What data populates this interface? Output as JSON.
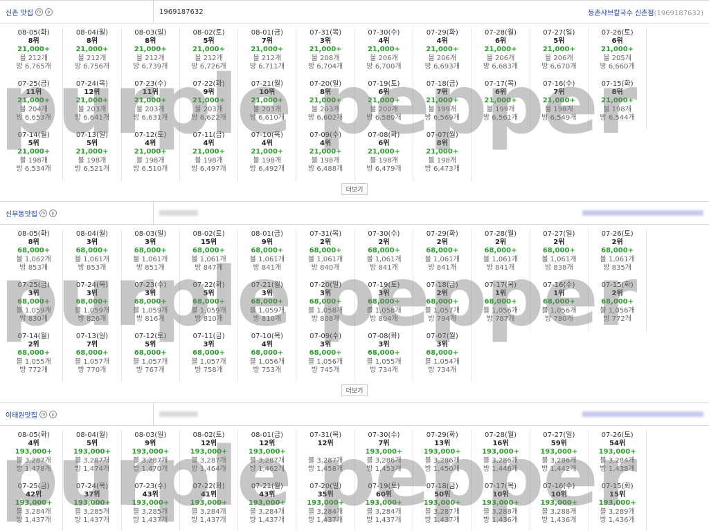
{
  "more_label": "더보기",
  "watermark_text": "purple pepper",
  "sections": [
    {
      "keyword": "신촌 맛집",
      "badge1": "m",
      "badge2": "p",
      "id": "1969187632",
      "store_name": "등촌샤브칼국수 신촌점",
      "store_id": "(1969187632)",
      "cells": [
        {
          "date": "08-05(화)",
          "rank": "8위",
          "price": "21,000+",
          "blog": "블 212개",
          "visit": "방 6,765개"
        },
        {
          "date": "08-04(월)",
          "rank": "8위",
          "price": "21,000+",
          "blog": "블 212개",
          "visit": "방 6,756개"
        },
        {
          "date": "08-03(일)",
          "rank": "8위",
          "price": "21,000+",
          "blog": "블 212개",
          "visit": "방 6,739개"
        },
        {
          "date": "08-02(토)",
          "rank": "5위",
          "price": "21,000+",
          "blog": "블 212개",
          "visit": "방 6,726개"
        },
        {
          "date": "08-01(금)",
          "rank": "7위",
          "price": "21,000+",
          "blog": "블 212개",
          "visit": "방 6,711개"
        },
        {
          "date": "07-31(목)",
          "rank": "3위",
          "price": "21,000+",
          "blog": "블 208개",
          "visit": "방 6,704개"
        },
        {
          "date": "07-30(수)",
          "rank": "4위",
          "price": "21,000+",
          "blog": "블 206개",
          "visit": "방 6,700개"
        },
        {
          "date": "07-29(화)",
          "rank": "4위",
          "price": "21,000+",
          "blog": "블 206개",
          "visit": "방 6,693개"
        },
        {
          "date": "07-28(월)",
          "rank": "6위",
          "price": "21,000+",
          "blog": "블 206개",
          "visit": "방 6,683개"
        },
        {
          "date": "07-27(일)",
          "rank": "5위",
          "price": "21,000+",
          "blog": "블 206개",
          "visit": "방 6,670개"
        },
        {
          "date": "07-26(토)",
          "rank": "6위",
          "price": "21,000+",
          "blog": "블 205개",
          "visit": "방 6,660개"
        },
        {
          "date": "07-25(금)",
          "rank": "11위",
          "price": "21,000+",
          "blog": "블 204개",
          "visit": "방 6,653개"
        },
        {
          "date": "07-24(목)",
          "rank": "12위",
          "price": "21,000+",
          "blog": "블 203개",
          "visit": "방 6,641개"
        },
        {
          "date": "07-23(수)",
          "rank": "11위",
          "price": "21,000+",
          "blog": "블 203개",
          "visit": "방 6,631개"
        },
        {
          "date": "07-22(화)",
          "rank": "9위",
          "price": "21,000+",
          "blog": "블 203개",
          "visit": "방 6,622개"
        },
        {
          "date": "07-21(월)",
          "rank": "10위",
          "price": "21,000+",
          "blog": "블 203개",
          "visit": "방 6,610개"
        },
        {
          "date": "07-20(일)",
          "rank": "8위",
          "price": "21,000+",
          "blog": "블 203개",
          "visit": "방 6,602개"
        },
        {
          "date": "07-19(토)",
          "rank": "6위",
          "price": "21,000+",
          "blog": "블 200개",
          "visit": "방 6,580개"
        },
        {
          "date": "07-18(금)",
          "rank": "7위",
          "price": "21,000+",
          "blog": "블 199개",
          "visit": "방 6,569개"
        },
        {
          "date": "07-17(목)",
          "rank": "6위",
          "price": "21,000+",
          "blog": "블 199개",
          "visit": "방 6,561개"
        },
        {
          "date": "07-16(수)",
          "rank": "7위",
          "price": "21,000+",
          "blog": "블 198개",
          "visit": "방 6,549개"
        },
        {
          "date": "07-15(화)",
          "rank": "8위",
          "price": "21,000+",
          "blog": "블 198개",
          "visit": "방 6,544개"
        },
        {
          "date": "07-14(월)",
          "rank": "5위",
          "price": "21,000+",
          "blog": "블 198개",
          "visit": "방 6,534개"
        },
        {
          "date": "07-13(일)",
          "rank": "5위",
          "price": "21,000+",
          "blog": "블 198개",
          "visit": "방 6,521개"
        },
        {
          "date": "07-12(토)",
          "rank": "4위",
          "price": "21,000+",
          "blog": "블 198개",
          "visit": "방 6,510개"
        },
        {
          "date": "07-11(금)",
          "rank": "4위",
          "price": "21,000+",
          "blog": "블 198개",
          "visit": "방 6,497개"
        },
        {
          "date": "07-10(목)",
          "rank": "4위",
          "price": "21,000+",
          "blog": "블 198개",
          "visit": "방 6,492개"
        },
        {
          "date": "07-09(수)",
          "rank": "4위",
          "price": "21,000+",
          "blog": "블 198개",
          "visit": "방 6,488개"
        },
        {
          "date": "07-08(화)",
          "rank": "6위",
          "price": "21,000+",
          "blog": "블 198개",
          "visit": "방 6,479개"
        },
        {
          "date": "07-07(월)",
          "rank": "8위",
          "price": "21,000+",
          "blog": "블 198개",
          "visit": "방 6,473개"
        }
      ]
    },
    {
      "keyword": "신부동맛집",
      "badge1": "m",
      "badge2": "p",
      "id": "",
      "store_name": "",
      "store_id": "",
      "cells": [
        {
          "date": "08-05(화)",
          "rank": "8위",
          "price": "68,000+",
          "blog": "블 1,062개",
          "visit": "방 853개"
        },
        {
          "date": "08-04(월)",
          "rank": "3위",
          "price": "68,000+",
          "blog": "블 1,061개",
          "visit": "방 853개"
        },
        {
          "date": "08-03(일)",
          "rank": "3위",
          "price": "68,000+",
          "blog": "블 1,061개",
          "visit": "방 851개"
        },
        {
          "date": "08-02(토)",
          "rank": "15위",
          "price": "68,000+",
          "blog": "블 1,061개",
          "visit": "방 847개"
        },
        {
          "date": "08-01(금)",
          "rank": "9위",
          "price": "68,000+",
          "blog": "블 1,061개",
          "visit": "방 841개"
        },
        {
          "date": "07-31(목)",
          "rank": "2위",
          "price": "68,000+",
          "blog": "블 1,061개",
          "visit": "방 840개"
        },
        {
          "date": "07-30(수)",
          "rank": "2위",
          "price": "68,000+",
          "blog": "블 1,061개",
          "visit": "방 841개"
        },
        {
          "date": "07-29(화)",
          "rank": "2위",
          "price": "68,000+",
          "blog": "블 1,061개",
          "visit": "방 841개"
        },
        {
          "date": "07-28(월)",
          "rank": "2위",
          "price": "68,000+",
          "blog": "블 1,061개",
          "visit": "방 841개"
        },
        {
          "date": "07-27(일)",
          "rank": "2위",
          "price": "68,000+",
          "blog": "블 1,061개",
          "visit": "방 838개"
        },
        {
          "date": "07-26(토)",
          "rank": "2위",
          "price": "68,000+",
          "blog": "블 1,061개",
          "visit": "방 835개"
        },
        {
          "date": "07-25(금)",
          "rank": "3위",
          "price": "68,000+",
          "blog": "블 1,059개",
          "visit": "방 830개"
        },
        {
          "date": "07-24(목)",
          "rank": "3위",
          "price": "68,000+",
          "blog": "블 1,059개",
          "visit": "방 826개"
        },
        {
          "date": "07-23(수)",
          "rank": "3위",
          "price": "68,000+",
          "blog": "블 1,059개",
          "visit": "방 816개"
        },
        {
          "date": "07-22(화)",
          "rank": "5위",
          "price": "68,000+",
          "blog": "블 1,059개",
          "visit": "방 810개"
        },
        {
          "date": "07-21(월)",
          "rank": "3위",
          "price": "68,000+",
          "blog": "블 1,059개",
          "visit": "방 810개"
        },
        {
          "date": "07-20(일)",
          "rank": "3위",
          "price": "68,000+",
          "blog": "블 1,058개",
          "visit": "방 808개"
        },
        {
          "date": "07-19(토)",
          "rank": "3위",
          "price": "68,000+",
          "blog": "블 1,058개",
          "visit": "방 804개"
        },
        {
          "date": "07-18(금)",
          "rank": "2위",
          "price": "68,000+",
          "blog": "블 1,057개",
          "visit": "방 794개"
        },
        {
          "date": "07-17(목)",
          "rank": "1위",
          "price": "68,000+",
          "blog": "블 1,056개",
          "visit": "방 787개"
        },
        {
          "date": "07-16(수)",
          "rank": "1위",
          "price": "68,000+",
          "blog": "블 1,056개",
          "visit": "방 780개"
        },
        {
          "date": "07-15(화)",
          "rank": "2위",
          "price": "68,000+",
          "blog": "블 1,056개",
          "visit": "방 772개"
        },
        {
          "date": "07-14(월)",
          "rank": "2위",
          "price": "68,000+",
          "blog": "블 1,055개",
          "visit": "방 772개"
        },
        {
          "date": "07-13(일)",
          "rank": "7위",
          "price": "68,000+",
          "blog": "블 1,057개",
          "visit": "방 770개"
        },
        {
          "date": "07-12(토)",
          "rank": "5위",
          "price": "68,000+",
          "blog": "블 1,057개",
          "visit": "방 767개"
        },
        {
          "date": "07-11(금)",
          "rank": "3위",
          "price": "68,000+",
          "blog": "블 1,057개",
          "visit": "방 758개"
        },
        {
          "date": "07-10(목)",
          "rank": "4위",
          "price": "68,000+",
          "blog": "블 1,056개",
          "visit": "방 753개"
        },
        {
          "date": "07-09(수)",
          "rank": "3위",
          "price": "68,000+",
          "blog": "블 1,056개",
          "visit": "방 745개"
        },
        {
          "date": "07-08(화)",
          "rank": "3위",
          "price": "68,000+",
          "blog": "블 1,055개",
          "visit": "방 734개"
        },
        {
          "date": "07-07(월)",
          "rank": "3위",
          "price": "68,000+",
          "blog": "블 1,054개",
          "visit": "방 734개"
        }
      ]
    },
    {
      "keyword": "이태원맛집",
      "badge1": "m",
      "badge2": "p",
      "id": "",
      "store_name": "",
      "store_id": "",
      "cells": [
        {
          "date": "08-05(화)",
          "rank": "4위",
          "price": "193,000+",
          "blog": "블 3,287개",
          "visit": "방 1,478개"
        },
        {
          "date": "08-04(월)",
          "rank": "5위",
          "price": "193,000+",
          "blog": "블 3,287개",
          "visit": "방 1,474개"
        },
        {
          "date": "08-03(일)",
          "rank": "9위",
          "price": "193,000+",
          "blog": "블 3,287개",
          "visit": "방 1,470개"
        },
        {
          "date": "08-02(토)",
          "rank": "12위",
          "price": "193,000+",
          "blog": "블 3,287개",
          "visit": "방 1,464개"
        },
        {
          "date": "08-01(금)",
          "rank": "12위",
          "price": "193,000+",
          "blog": "블 3,287개",
          "visit": "방 1,462개"
        },
        {
          "date": "07-31(목)",
          "rank": "12위",
          "price": "",
          "blog": "블 3,287개",
          "visit": "방 1,458개"
        },
        {
          "date": "07-30(수)",
          "rank": "7위",
          "price": "193,000+",
          "blog": "블 3,286개",
          "visit": "방 1,453개"
        },
        {
          "date": "07-29(화)",
          "rank": "13위",
          "price": "193,000+",
          "blog": "블 3,286개",
          "visit": "방 1,450개"
        },
        {
          "date": "07-28(월)",
          "rank": "16위",
          "price": "193,000+",
          "blog": "블 3,286개",
          "visit": "방 1,446개"
        },
        {
          "date": "07-27(일)",
          "rank": "59위",
          "price": "193,000+",
          "blog": "블 3,286개",
          "visit": "방 1,442개"
        },
        {
          "date": "07-26(토)",
          "rank": "54위",
          "price": "193,000+",
          "blog": "블 3,284개",
          "visit": "방 1,438개"
        },
        {
          "date": "07-25(금)",
          "rank": "42위",
          "price": "193,000+",
          "blog": "블 3,284개",
          "visit": "방 1,437개"
        },
        {
          "date": "07-24(목)",
          "rank": "37위",
          "price": "193,000+",
          "blog": "블 3,285개",
          "visit": "방 1,437개"
        },
        {
          "date": "07-23(수)",
          "rank": "43위",
          "price": "193,000+",
          "blog": "블 3,285개",
          "visit": "방 1,437개"
        },
        {
          "date": "07-22(화)",
          "rank": "41위",
          "price": "193,000+",
          "blog": "블 3,284개",
          "visit": "방 1,437개"
        },
        {
          "date": "07-21(월)",
          "rank": "43위",
          "price": "193,000+",
          "blog": "블 3,284개",
          "visit": "방 1,437개"
        },
        {
          "date": "07-20(일)",
          "rank": "35위",
          "price": "193,000+",
          "blog": "블 3,284개",
          "visit": "방 1,437개"
        },
        {
          "date": "07-19(토)",
          "rank": "60위",
          "price": "193,000+",
          "blog": "블 3,284개",
          "visit": "방 1,437개"
        },
        {
          "date": "07-18(금)",
          "rank": "50위",
          "price": "193,000+",
          "blog": "블 3,287개",
          "visit": "방 1,437개"
        },
        {
          "date": "07-17(목)",
          "rank": "10위",
          "price": "193,000+",
          "blog": "블 3,288개",
          "visit": "방 1,436개"
        },
        {
          "date": "07-16(수)",
          "rank": "10위",
          "price": "193,000+",
          "blog": "블 3,288개",
          "visit": "방 1,436개"
        },
        {
          "date": "07-15(화)",
          "rank": "15위",
          "price": "193,000+",
          "blog": "블 3,289개",
          "visit": "방 1,436개"
        }
      ]
    }
  ]
}
